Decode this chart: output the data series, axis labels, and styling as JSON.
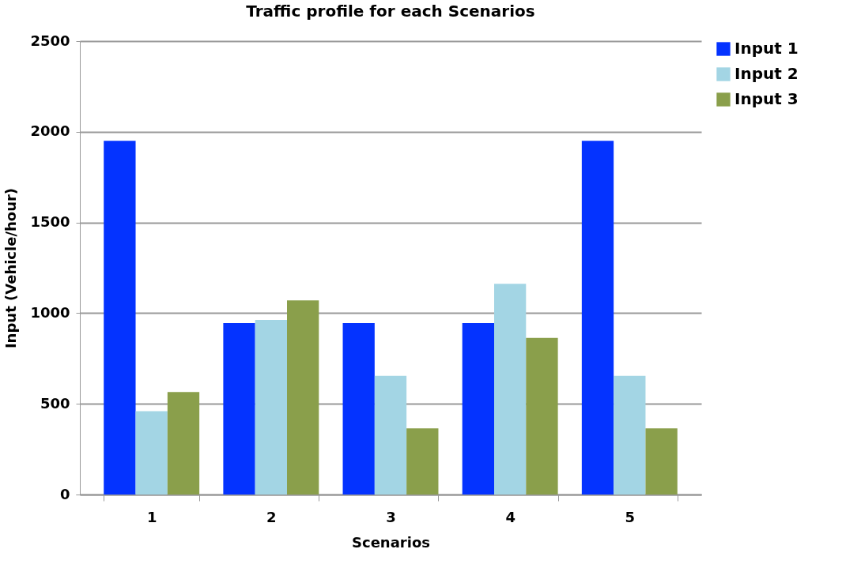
{
  "chart_data": {
    "type": "bar",
    "title": "Traffic profile for each Scenarios",
    "xlabel": "Scenarios",
    "ylabel": "Input (Vehicle/hour)",
    "categories": [
      "1",
      "2",
      "3",
      "4",
      "5"
    ],
    "series": [
      {
        "name": "Input 1",
        "color": "#0433ff",
        "values": [
          1950,
          945,
          945,
          945,
          1950
        ]
      },
      {
        "name": "Input 2",
        "color": "#a3d5e4",
        "values": [
          460,
          963,
          654,
          1162,
          654
        ]
      },
      {
        "name": "Input 3",
        "color": "#8a9f4b",
        "values": [
          565,
          1070,
          365,
          863,
          365
        ]
      }
    ],
    "ylim": [
      0,
      2500
    ],
    "yticks": [
      0,
      500,
      1000,
      1500,
      2000,
      2500
    ],
    "grid": "y",
    "legend": "right"
  }
}
